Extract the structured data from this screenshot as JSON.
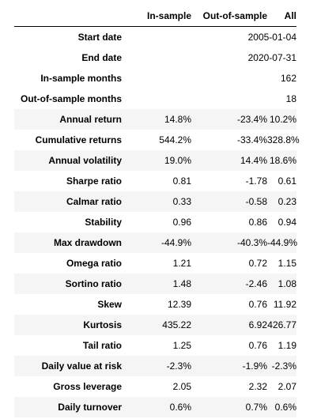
{
  "meta": [
    {
      "label": "Start date",
      "value": "2005-01-04"
    },
    {
      "label": "End date",
      "value": "2020-07-31"
    },
    {
      "label": "In-sample months",
      "value": "162"
    },
    {
      "label": "Out-of-sample months",
      "value": "18"
    }
  ],
  "columns": [
    "In-sample",
    "Out-of-sample",
    "All"
  ],
  "rows": [
    {
      "label": "Annual return",
      "values": [
        "14.8%",
        "-23.4%",
        "10.2%"
      ]
    },
    {
      "label": "Cumulative returns",
      "values": [
        "544.2%",
        "-33.4%",
        "328.8%"
      ]
    },
    {
      "label": "Annual volatility",
      "values": [
        "19.0%",
        "14.4%",
        "18.6%"
      ]
    },
    {
      "label": "Sharpe ratio",
      "values": [
        "0.81",
        "-1.78",
        "0.61"
      ]
    },
    {
      "label": "Calmar ratio",
      "values": [
        "0.33",
        "-0.58",
        "0.23"
      ]
    },
    {
      "label": "Stability",
      "values": [
        "0.96",
        "0.86",
        "0.94"
      ]
    },
    {
      "label": "Max drawdown",
      "values": [
        "-44.9%",
        "-40.3%",
        "-44.9%"
      ]
    },
    {
      "label": "Omega ratio",
      "values": [
        "1.21",
        "0.72",
        "1.15"
      ]
    },
    {
      "label": "Sortino ratio",
      "values": [
        "1.48",
        "-2.46",
        "1.08"
      ]
    },
    {
      "label": "Skew",
      "values": [
        "12.39",
        "0.76",
        "11.92"
      ]
    },
    {
      "label": "Kurtosis",
      "values": [
        "435.22",
        "6.92",
        "426.77"
      ]
    },
    {
      "label": "Tail ratio",
      "values": [
        "1.25",
        "0.76",
        "1.19"
      ]
    },
    {
      "label": "Daily value at risk",
      "values": [
        "-2.3%",
        "-1.9%",
        "-2.3%"
      ]
    },
    {
      "label": "Gross leverage",
      "values": [
        "2.05",
        "2.32",
        "2.07"
      ]
    },
    {
      "label": "Daily turnover",
      "values": [
        "0.6%",
        "0.7%",
        "0.6%"
      ]
    }
  ]
}
